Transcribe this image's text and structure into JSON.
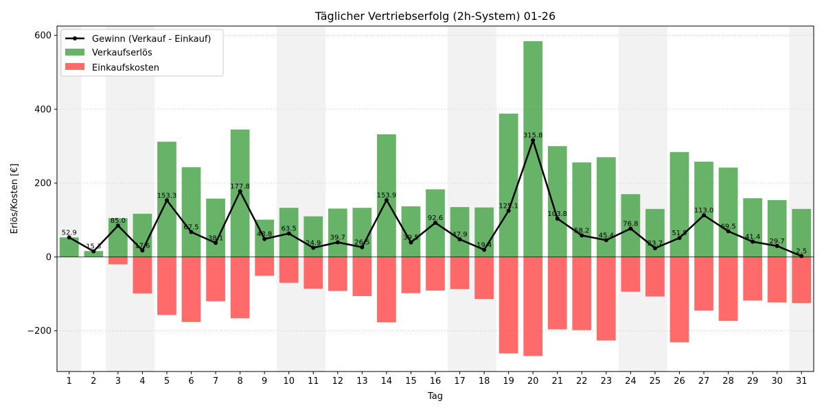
{
  "chart_data": {
    "type": "bar",
    "title": "Täglicher Vertriebserfolg (2h-System) 01-26",
    "xlabel": "Tag",
    "ylabel": "Erlös/Kosten [€]",
    "ylim": [
      -310,
      625
    ],
    "yticks": [
      -200,
      0,
      200,
      400,
      600
    ],
    "grid": "y-dotted",
    "legend_position": "top-left",
    "categories": [
      "1",
      "2",
      "3",
      "4",
      "5",
      "6",
      "7",
      "8",
      "9",
      "10",
      "11",
      "12",
      "13",
      "14",
      "15",
      "16",
      "17",
      "18",
      "19",
      "20",
      "21",
      "22",
      "23",
      "24",
      "25",
      "26",
      "27",
      "28",
      "29",
      "30",
      "31"
    ],
    "shaded_days": [
      "1",
      "3",
      "4",
      "10",
      "11",
      "17",
      "18",
      "24",
      "25",
      "31"
    ],
    "series": [
      {
        "name": "Gewinn (Verkauf - Einkauf)",
        "type": "line",
        "color": "#000000",
        "values": [
          52.9,
          15.3,
          85.0,
          17.6,
          153.3,
          67.5,
          38.1,
          177.8,
          48.8,
          63.5,
          24.9,
          39.7,
          26.5,
          153.9,
          39.5,
          92.6,
          47.9,
          19.4,
          125.1,
          315.8,
          103.8,
          58.2,
          45.4,
          76.8,
          23.7,
          51.5,
          113.0,
          69.5,
          41.4,
          29.7,
          2.5
        ],
        "labels": [
          "52.9",
          "15.3",
          "85.0",
          "17.6",
          "153.3",
          "67.5",
          "38.1",
          "177.8",
          "48.8",
          "63.5",
          "24.9",
          "39.7",
          "26.5",
          "153.9",
          "39.5",
          "92.6",
          "47.9",
          "19.4",
          "125.1",
          "315.8",
          "103.8",
          "58.2",
          "45.4",
          "76.8",
          "23.7",
          "51.5",
          "113.0",
          "69.5",
          "41.4",
          "29.7",
          "2.5"
        ]
      },
      {
        "name": "Verkaufserlös",
        "type": "bar",
        "color": "#4ca64c",
        "values": [
          53,
          16,
          105,
          117,
          312,
          243,
          158,
          345,
          101,
          133,
          110,
          131,
          133,
          332,
          137,
          183,
          135,
          134,
          388,
          584,
          300,
          256,
          270,
          170,
          130,
          284,
          258,
          242,
          159,
          154,
          130
        ]
      },
      {
        "name": "Einkaufskosten",
        "type": "bar",
        "color": "#ff5050",
        "values": [
          0,
          0,
          -20,
          -99,
          -157,
          -176,
          -120,
          -166,
          -51,
          -70,
          -86,
          -92,
          -106,
          -177,
          -98,
          -91,
          -87,
          -114,
          -261,
          -268,
          -196,
          -198,
          -226,
          -94,
          -107,
          -231,
          -145,
          -173,
          -118,
          -123,
          -125
        ]
      }
    ]
  }
}
